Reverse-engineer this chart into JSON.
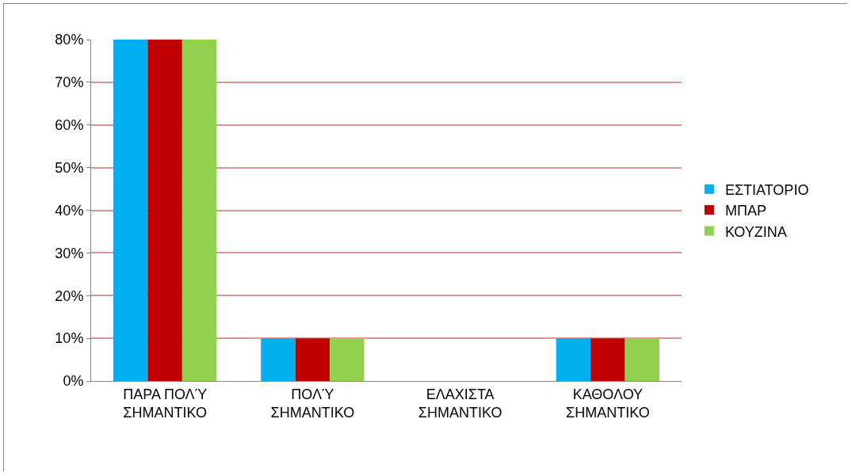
{
  "chart_data": {
    "type": "bar",
    "categories": [
      "ΠΑΡΑ ΠΟΛΎ\nΣΗΜΑΝΤΙΚΟ",
      "ΠΟΛΎ\nΣΗΜΑΝΤΙΚΟ",
      "ΕΛΑΧΙΣΤΑ\nΣΗΜΑΝΤΙΚΟ",
      "ΚΑΘΟΛΟΥ\nΣΗΜΑΝΤΙΚΟ"
    ],
    "series": [
      {
        "name": "ΕΣΤΙΑΤΟΡΙΟ",
        "color": "#00b0f0",
        "values": [
          80,
          10,
          0,
          10
        ]
      },
      {
        "name": "ΜΠΑΡ",
        "color": "#c00000",
        "values": [
          80,
          10,
          0,
          10
        ]
      },
      {
        "name": "ΚΟΥΖΙΝΑ",
        "color": "#92d050",
        "values": [
          80,
          10,
          0,
          10
        ]
      }
    ],
    "ylim": [
      0,
      80
    ],
    "yticks": [
      {
        "value": 0,
        "label": "0%"
      },
      {
        "value": 10,
        "label": "10%"
      },
      {
        "value": 20,
        "label": "20%"
      },
      {
        "value": 30,
        "label": "30%"
      },
      {
        "value": 40,
        "label": "40%"
      },
      {
        "value": 50,
        "label": "50%"
      },
      {
        "value": 60,
        "label": "60%"
      },
      {
        "value": 70,
        "label": "70%"
      },
      {
        "value": 80,
        "label": "80%"
      }
    ],
    "grid": "y",
    "legend": "right"
  }
}
